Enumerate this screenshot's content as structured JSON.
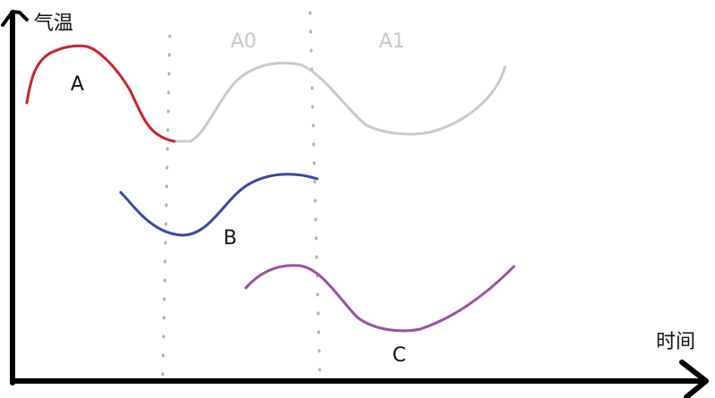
{
  "axes": {
    "y_label": "气温",
    "x_label": "时间"
  },
  "curves": [
    {
      "label": "A",
      "color": "#c8232c"
    },
    {
      "label": "B",
      "color": "#3a47a8"
    },
    {
      "label": "C",
      "color": "#9b4fa3"
    }
  ],
  "periods": [
    {
      "label": "A0",
      "color": "#c8c8c8"
    },
    {
      "label": "A1",
      "color": "#c8c8c8"
    }
  ],
  "colors": {
    "axis": "#000000",
    "continuation": "#c8c8c8",
    "guide": "#b0b0b0"
  }
}
